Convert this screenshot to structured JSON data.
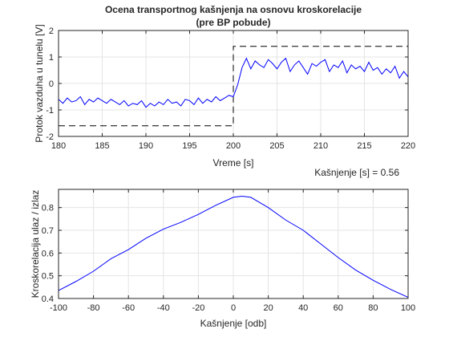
{
  "chart_data": [
    {
      "type": "line",
      "title": "Ocena transportnog kašnjenja na osnovu kroskorelacije",
      "subtitle": "(pre BP pobude)",
      "xlabel": "Vreme [s]",
      "ylabel": "Protok vazduha u tunelu [V]",
      "xlim": [
        180,
        220
      ],
      "ylim": [
        -2,
        2
      ],
      "xticks": [
        180,
        185,
        190,
        195,
        200,
        205,
        210,
        215,
        220
      ],
      "yticks": [
        -2,
        -1,
        0,
        1,
        2
      ],
      "grid": true,
      "series": [
        {
          "style": "dashed",
          "color": "#000000",
          "x": [
            180,
            200,
            200,
            220
          ],
          "y": [
            -1.6,
            -1.6,
            1.4,
            1.4
          ]
        },
        {
          "style": "solid",
          "color": "#0000ff",
          "x": [
            180,
            180.5,
            181,
            181.5,
            182,
            182.5,
            183,
            183.5,
            184,
            184.5,
            185,
            185.5,
            186,
            186.5,
            187,
            187.5,
            188,
            188.5,
            189,
            189.5,
            190,
            190.5,
            191,
            191.5,
            192,
            192.5,
            193,
            193.5,
            194,
            194.5,
            195,
            195.5,
            196,
            196.5,
            197,
            197.5,
            198,
            198.5,
            199,
            199.5,
            200,
            200.5,
            201,
            201.5,
            202,
            202.5,
            203,
            203.5,
            204,
            204.5,
            205,
            205.5,
            206,
            206.5,
            207,
            207.5,
            208,
            208.5,
            209,
            209.5,
            210,
            210.5,
            211,
            211.5,
            212,
            212.5,
            213,
            213.5,
            214,
            214.5,
            215,
            215.5,
            216,
            216.5,
            217,
            217.5,
            218,
            218.5,
            219,
            219.5,
            220
          ],
          "y": [
            -0.6,
            -0.75,
            -0.55,
            -0.7,
            -0.65,
            -0.5,
            -0.8,
            -0.6,
            -0.7,
            -0.55,
            -0.65,
            -0.75,
            -0.6,
            -0.7,
            -0.8,
            -0.65,
            -0.85,
            -0.75,
            -0.8,
            -0.65,
            -0.9,
            -0.75,
            -0.85,
            -0.7,
            -0.8,
            -0.6,
            -0.75,
            -0.7,
            -0.85,
            -0.6,
            -0.65,
            -0.8,
            -0.55,
            -0.75,
            -0.6,
            -0.7,
            -0.5,
            -0.65,
            -0.55,
            -0.45,
            -0.5,
            -0.05,
            0.6,
            0.95,
            0.55,
            0.85,
            0.7,
            0.6,
            0.9,
            0.75,
            0.55,
            0.8,
            0.95,
            0.45,
            0.7,
            0.85,
            0.6,
            0.35,
            0.75,
            0.65,
            0.8,
            0.9,
            0.45,
            0.7,
            0.6,
            0.85,
            0.4,
            0.7,
            0.55,
            0.65,
            0.45,
            0.8,
            0.5,
            0.6,
            0.35,
            0.55,
            0.4,
            0.65,
            0.2,
            0.45,
            0.25
          ]
        }
      ]
    },
    {
      "type": "line",
      "xlabel": "Kašnjenje [odb]",
      "ylabel": "Kroskorelacija ulaz / izlaz",
      "annotation": "Kašnjenje [s] = 0.56",
      "xlim": [
        -100,
        100
      ],
      "ylim": [
        0.4,
        0.88
      ],
      "xticks": [
        -100,
        -80,
        -60,
        -40,
        -20,
        0,
        20,
        40,
        60,
        80,
        100
      ],
      "yticks": [
        0.4,
        0.5,
        0.6,
        0.7,
        0.8
      ],
      "grid": true,
      "series": [
        {
          "style": "solid",
          "color": "#0000ff",
          "x": [
            -100,
            -90,
            -80,
            -70,
            -60,
            -50,
            -40,
            -30,
            -20,
            -10,
            0,
            5,
            10,
            20,
            30,
            40,
            50,
            60,
            70,
            80,
            90,
            100
          ],
          "y": [
            0.435,
            0.475,
            0.52,
            0.575,
            0.615,
            0.665,
            0.705,
            0.735,
            0.77,
            0.81,
            0.845,
            0.85,
            0.845,
            0.8,
            0.745,
            0.7,
            0.64,
            0.58,
            0.525,
            0.48,
            0.44,
            0.405
          ]
        }
      ]
    }
  ]
}
